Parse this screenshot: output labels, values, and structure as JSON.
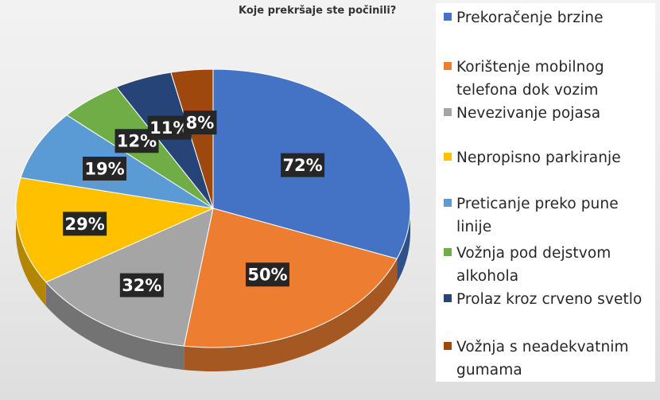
{
  "chart_data": {
    "type": "pie",
    "title": "Koje prekršaje ste počinili?",
    "categories": [
      "Prekoračenje brzine",
      "Korištenje mobilnog telefona dok vozim",
      "Nevezivanje pojasa",
      "Nepropisno parkiranje",
      "Preticanje preko pune linije",
      "Vožnja pod dejstvom alkohola",
      "Prolaz kroz crveno svetlo",
      "Vožnja s neadekvatnim gumama"
    ],
    "values": [
      72,
      50,
      32,
      29,
      19,
      12,
      11,
      8
    ],
    "labels": [
      "72%",
      "50%",
      "32%",
      "29%",
      "19%",
      "12%",
      "11%",
      "8%"
    ],
    "colors": [
      "#4472C4",
      "#ED7D31",
      "#A5A5A5",
      "#FFC000",
      "#5B9BD5",
      "#70AD47",
      "#264478",
      "#9E480E"
    ],
    "legend_position": "right"
  }
}
